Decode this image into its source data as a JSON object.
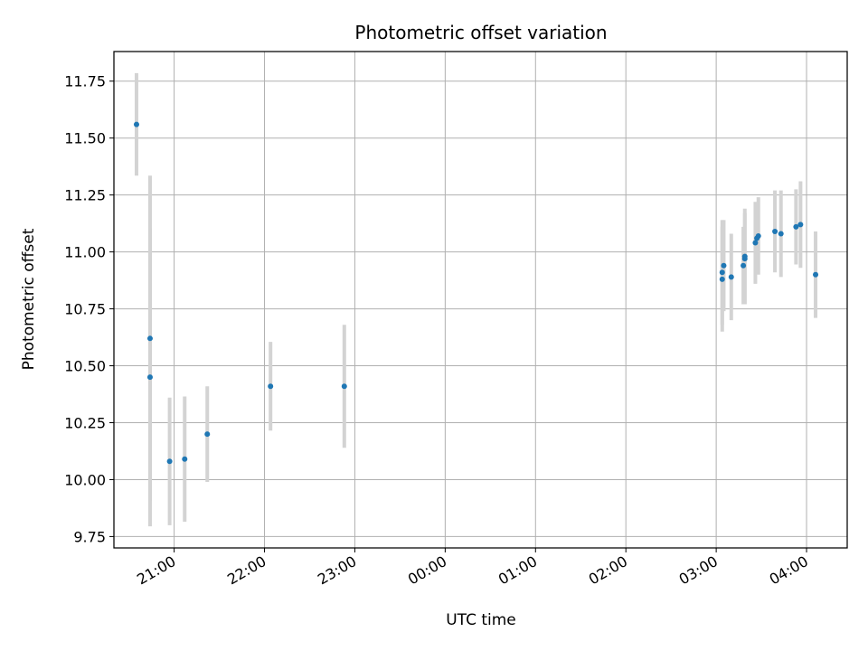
{
  "chart_data": {
    "type": "scatter",
    "title": "Photometric offset variation",
    "xlabel": "UTC time",
    "ylabel": "Photometric offset",
    "x_axis": {
      "kind": "time",
      "range": [
        "20:20",
        "04:27"
      ],
      "ticks": [
        "21:00",
        "22:00",
        "23:00",
        "00:00",
        "01:00",
        "02:00",
        "03:00",
        "04:00"
      ],
      "tick_label_rotation": "slanted"
    },
    "ylim": [
      9.7,
      11.88
    ],
    "y_ticks": [
      "9.75",
      "10.00",
      "10.25",
      "10.50",
      "10.75",
      "11.00",
      "11.25",
      "11.50",
      "11.75"
    ],
    "grid": true,
    "legend": "none",
    "colors": {
      "marker": "#1f77b4",
      "errorbar": "#d3d3d3",
      "grid": "#b0b0b0"
    },
    "points": [
      {
        "x": "20:35",
        "y": 11.56,
        "yerr": 0.225
      },
      {
        "x": "20:44",
        "y": 10.62,
        "yerr": 0.715
      },
      {
        "x": "20:44",
        "y": 10.45,
        "yerr": 0.655
      },
      {
        "x": "20:57",
        "y": 10.08,
        "yerr": 0.28
      },
      {
        "x": "21:07",
        "y": 10.09,
        "yerr": 0.275
      },
      {
        "x": "21:22",
        "y": 10.2,
        "yerr": 0.21
      },
      {
        "x": "22:04",
        "y": 10.41,
        "yerr": 0.195
      },
      {
        "x": "22:53",
        "y": 10.41,
        "yerr": 0.27
      },
      {
        "x": "03:04",
        "y": 10.88,
        "yerr": 0.23
      },
      {
        "x": "03:04",
        "y": 10.91,
        "yerr": 0.23
      },
      {
        "x": "03:05",
        "y": 10.94,
        "yerr": 0.2
      },
      {
        "x": "03:10",
        "y": 10.89,
        "yerr": 0.19
      },
      {
        "x": "03:18",
        "y": 10.94,
        "yerr": 0.17
      },
      {
        "x": "03:19",
        "y": 10.97,
        "yerr": 0.2
      },
      {
        "x": "03:19",
        "y": 10.98,
        "yerr": 0.21
      },
      {
        "x": "03:26",
        "y": 11.04,
        "yerr": 0.18
      },
      {
        "x": "03:27",
        "y": 11.06,
        "yerr": 0.15
      },
      {
        "x": "03:28",
        "y": 11.07,
        "yerr": 0.17
      },
      {
        "x": "03:39",
        "y": 11.09,
        "yerr": 0.18
      },
      {
        "x": "03:43",
        "y": 11.08,
        "yerr": 0.19
      },
      {
        "x": "03:53",
        "y": 11.11,
        "yerr": 0.165
      },
      {
        "x": "03:56",
        "y": 11.12,
        "yerr": 0.19
      },
      {
        "x": "04:06",
        "y": 10.9,
        "yerr": 0.19
      }
    ]
  }
}
